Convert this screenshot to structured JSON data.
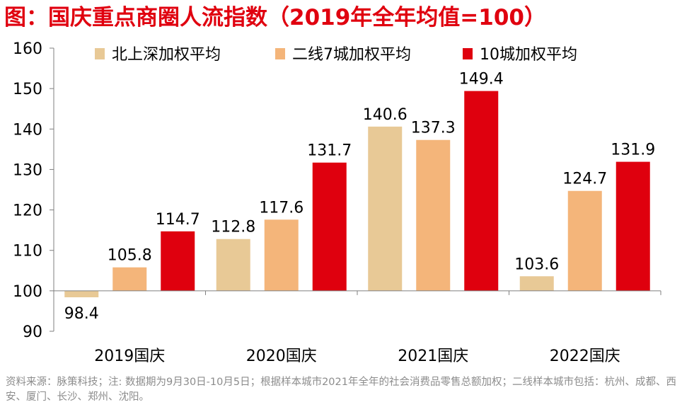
{
  "title": "图：国庆重点商圈人流指数（2019年全年均值=100）",
  "source": "资料来源：脉策科技；注: 数据期为9月30日-10月5日；根据样本城市2021年全年的社会消费品零售总额加权；二线样本城市包括：杭州、成都、西安、厦门、长沙、郑州、沈阳。",
  "chart_data": {
    "type": "bar",
    "title": "国庆重点商圈人流指数（2019年全年均值=100）",
    "xlabel": "",
    "ylabel": "",
    "ylim": [
      90,
      160
    ],
    "yticks": [
      90,
      100,
      110,
      120,
      130,
      140,
      150,
      160
    ],
    "baseline": 100,
    "grid": false,
    "legend_position": "top",
    "categories": [
      "2019国庆",
      "2020国庆",
      "2021国庆",
      "2022国庆"
    ],
    "series": [
      {
        "name": "北上深加权平均",
        "color": "#e8c996",
        "values": [
          98.4,
          112.8,
          140.6,
          103.6
        ],
        "labels": [
          "98.4",
          "112.8",
          "140.6",
          "103.6"
        ]
      },
      {
        "name": "二线7城加权平均",
        "color": "#f4b57a",
        "values": [
          105.8,
          117.6,
          137.3,
          124.7
        ],
        "labels": [
          "105.8",
          "117.6",
          "137.3",
          "124.7"
        ]
      },
      {
        "name": "10城加权平均",
        "color": "#df000e",
        "values": [
          114.7,
          131.7,
          149.4,
          131.9
        ],
        "labels": [
          "114.7",
          "131.7",
          "149.4",
          "131.9"
        ]
      }
    ]
  }
}
